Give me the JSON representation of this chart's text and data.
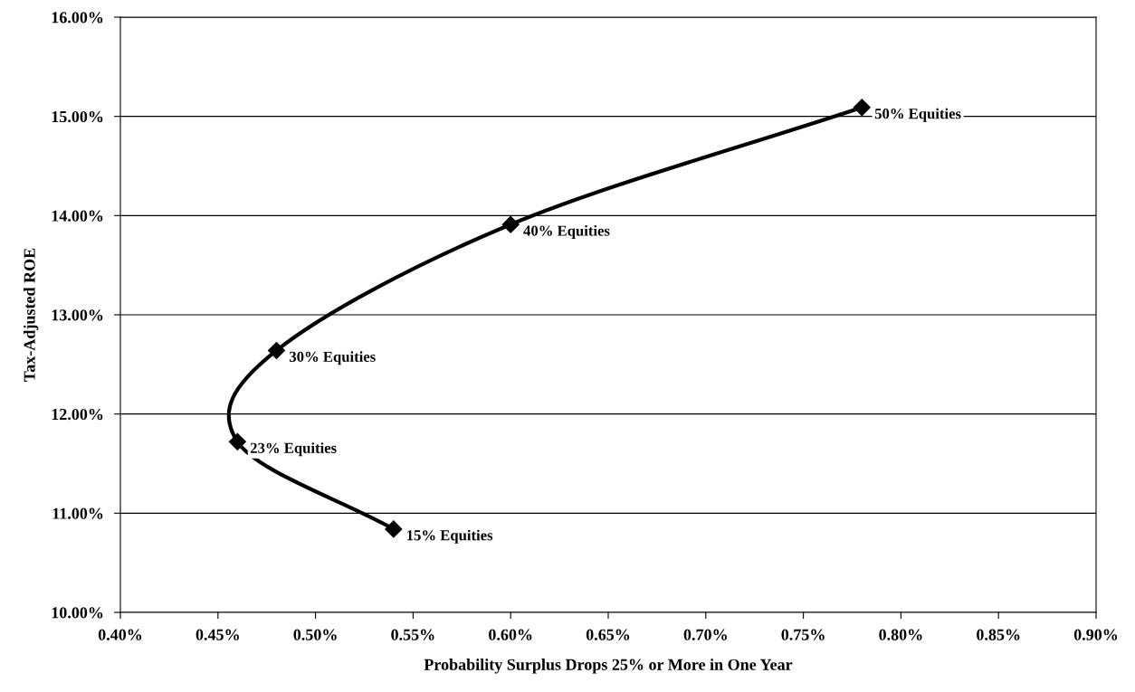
{
  "chart_data": {
    "type": "line",
    "xlabel": "Probability Surplus Drops 25% or More in One Year",
    "ylabel": "Tax-Adjusted ROE",
    "x": [
      0.54,
      0.46,
      0.48,
      0.6,
      0.78
    ],
    "series": [
      {
        "color": "#000000",
        "values": [
          10.84,
          11.72,
          12.64,
          13.91,
          15.09
        ]
      }
    ],
    "marker": "diamond",
    "line_style": "solid",
    "grid": "y",
    "xlim": [
      0.4,
      0.9
    ],
    "xticks": [
      {
        "value": 0.4,
        "label": "0.40%"
      },
      {
        "value": 0.45,
        "label": "0.45%"
      },
      {
        "value": 0.5,
        "label": "0.50%"
      },
      {
        "value": 0.55,
        "label": "0.55%"
      },
      {
        "value": 0.6,
        "label": "0.60%"
      },
      {
        "value": 0.65,
        "label": "0.65%"
      },
      {
        "value": 0.7,
        "label": "0.70%"
      },
      {
        "value": 0.75,
        "label": "0.75%"
      },
      {
        "value": 0.8,
        "label": "0.80%"
      },
      {
        "value": 0.85,
        "label": "0.85%"
      },
      {
        "value": 0.9,
        "label": "0.90%"
      }
    ],
    "ylim": [
      10,
      16
    ],
    "yticks": [
      {
        "value": 10,
        "label": "10.00%"
      },
      {
        "value": 11,
        "label": "11.00%"
      },
      {
        "value": 12,
        "label": "12.00%"
      },
      {
        "value": 13,
        "label": "13.00%"
      },
      {
        "value": 14,
        "label": "14.00%"
      },
      {
        "value": 15,
        "label": "15.00%"
      },
      {
        "value": 16,
        "label": "16.00%"
      }
    ],
    "annotations": [
      {
        "text": "15% Equities",
        "x": 0.54,
        "y": 10.84
      },
      {
        "text": "23% Equities",
        "x": 0.46,
        "y": 11.72
      },
      {
        "text": "30% Equities",
        "x": 0.48,
        "y": 12.64
      },
      {
        "text": "40% Equities",
        "x": 0.6,
        "y": 13.91
      },
      {
        "text": "50% Equities",
        "x": 0.78,
        "y": 15.09
      }
    ]
  }
}
